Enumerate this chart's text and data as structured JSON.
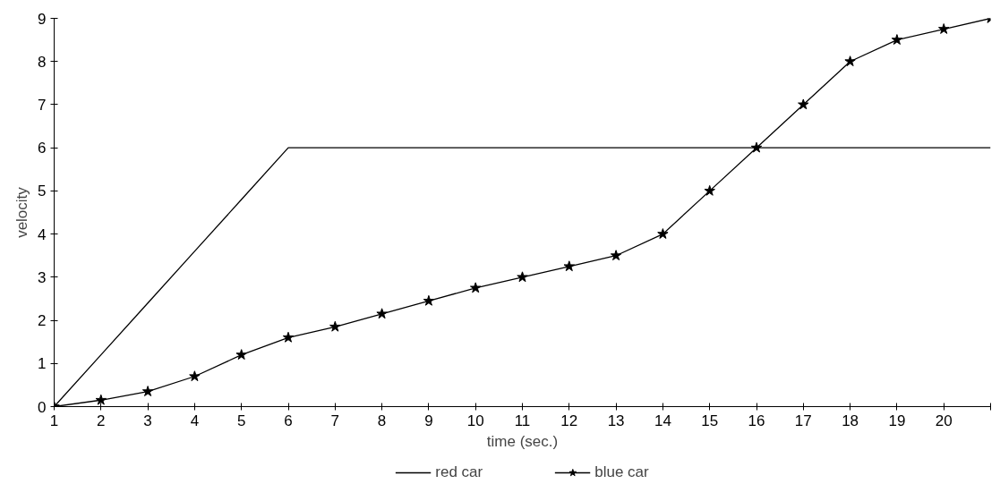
{
  "chart_data": {
    "type": "line",
    "xlabel": "time (sec.)",
    "ylabel": "velocity",
    "x": [
      1,
      2,
      3,
      4,
      5,
      6,
      7,
      8,
      9,
      10,
      11,
      12,
      13,
      14,
      15,
      16,
      17,
      18,
      19,
      20,
      21
    ],
    "series": [
      {
        "name": "red car",
        "color": "#000000",
        "marker": "none",
        "values": [
          0,
          1.2,
          2.4,
          3.6,
          4.8,
          6,
          6,
          6,
          6,
          6,
          6,
          6,
          6,
          6,
          6,
          6,
          6,
          6,
          6,
          6,
          6
        ]
      },
      {
        "name": "blue car",
        "color": "#000000",
        "marker": "star",
        "values": [
          0,
          0.15,
          0.35,
          0.7,
          1.2,
          1.6,
          1.85,
          2.15,
          2.45,
          2.75,
          3.0,
          3.25,
          3.5,
          4.0,
          5.0,
          6.0,
          7.0,
          8.0,
          8.5,
          8.75,
          9.0
        ]
      }
    ],
    "xlim": [
      1,
      21
    ],
    "ylim": [
      0,
      9
    ],
    "xticks": [
      1,
      2,
      3,
      4,
      5,
      6,
      7,
      8,
      9,
      10,
      11,
      12,
      13,
      14,
      15,
      16,
      17,
      18,
      19,
      20,
      {
        "value": 21,
        "label": null
      }
    ],
    "yticks": [
      0,
      1,
      2,
      3,
      4,
      5,
      6,
      7,
      8,
      9
    ],
    "grid": false,
    "legend": "bottom",
    "line_style": "solid"
  }
}
